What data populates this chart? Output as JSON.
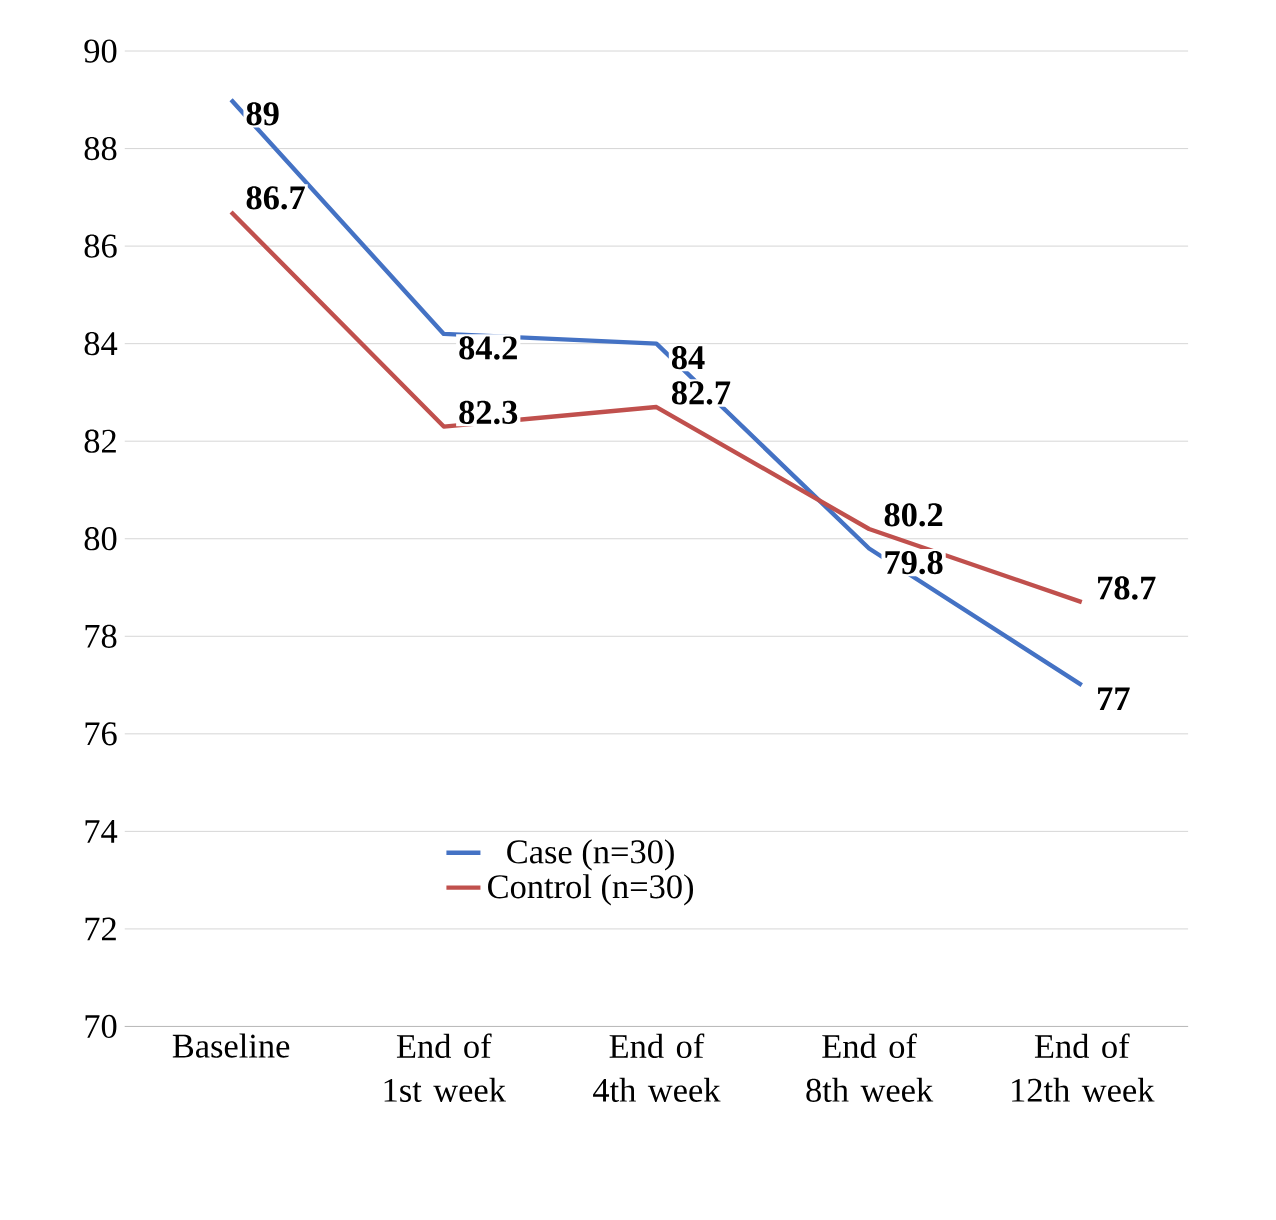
{
  "chart_data": {
    "type": "line",
    "categories": [
      "Baseline",
      "End of 1st week",
      "End of 4th week",
      "End of 8th week",
      "End of 12th week"
    ],
    "series": [
      {
        "name": "Case (n=30)",
        "color": "#4472c4",
        "values": [
          89,
          84.2,
          84,
          79.8,
          77
        ]
      },
      {
        "name": "Control (n=30)",
        "color": "#c0504d",
        "values": [
          86.7,
          82.3,
          82.7,
          80.2,
          78.7
        ]
      }
    ],
    "ylim": [
      70,
      90
    ],
    "yticks": [
      70,
      72,
      74,
      76,
      78,
      80,
      82,
      84,
      86,
      88,
      90
    ],
    "grid": "y",
    "legend": "bottom",
    "data_labels": true,
    "marker": "none",
    "line_style": "solid"
  }
}
